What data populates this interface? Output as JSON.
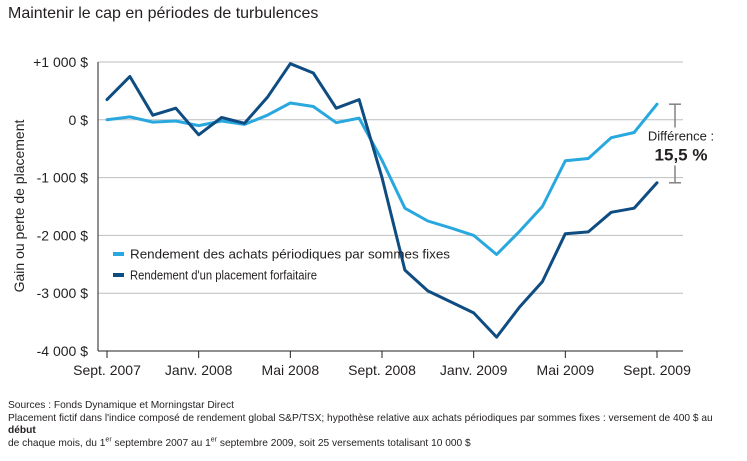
{
  "title": "Maintenir le cap en périodes de turbulences",
  "footer": {
    "sources": "Sources : Fonds Dynamique et Morningstar Direct",
    "note_part1": "Placement fictif dans l'indice composé de rendement global S&P/TSX; hypothèse relative aux achats périodiques par sommes fixes : versement de 400 $ au ",
    "note_bold": "début",
    "note_part2": "de chaque mois, du 1",
    "note_sup1": "er",
    "note_part3": " septembre 2007 au 1",
    "note_sup2": "er",
    "note_part4": " septembre 2009, soit 25 versements totalisant 10 000 $"
  },
  "chart_data": {
    "type": "line",
    "ylabel": "Gain ou perte de placement",
    "ylim": [
      -4000,
      1000
    ],
    "yticks": [
      1000,
      0,
      -1000,
      -2000,
      -3000,
      -4000
    ],
    "ytick_labels": [
      "+1 000 $",
      "0 $",
      "-1 000 $",
      "-2 000 $",
      "-3 000 $",
      "-4 000 $"
    ],
    "x": [
      "2007-09",
      "2007-10",
      "2007-11",
      "2007-12",
      "2008-01",
      "2008-02",
      "2008-03",
      "2008-04",
      "2008-05",
      "2008-06",
      "2008-07",
      "2008-08",
      "2008-09",
      "2008-10",
      "2008-11",
      "2008-12",
      "2009-01",
      "2009-02",
      "2009-03",
      "2009-04",
      "2009-05",
      "2009-06",
      "2009-07",
      "2009-08",
      "2009-09"
    ],
    "xtick_labels": [
      {
        "at": "2007-09",
        "label": "Sept. 2007"
      },
      {
        "at": "2008-01",
        "label": "Janv. 2008"
      },
      {
        "at": "2008-05",
        "label": "Mai 2008"
      },
      {
        "at": "2008-09",
        "label": "Sept. 2008"
      },
      {
        "at": "2009-01",
        "label": "Janv. 2009"
      },
      {
        "at": "2009-05",
        "label": "Mai 2009"
      },
      {
        "at": "2009-09",
        "label": "Sept. 2009"
      }
    ],
    "series": [
      {
        "name": "Rendement des achats périodiques par sommes fixes",
        "color": "#29a8df",
        "values": [
          0,
          50,
          -40,
          -20,
          -100,
          -20,
          -80,
          80,
          290,
          230,
          -50,
          30,
          -700,
          -1530,
          -1750,
          -1870,
          -2000,
          -2330,
          -1930,
          -1500,
          -710,
          -670,
          -310,
          -220,
          270
        ]
      },
      {
        "name": "Rendement d'un placement forfaitaire",
        "color": "#0f4c81",
        "values": [
          350,
          750,
          80,
          200,
          -260,
          40,
          -60,
          390,
          970,
          810,
          200,
          350,
          -1000,
          -2600,
          -2960,
          -3150,
          -3340,
          -3760,
          -3240,
          -2800,
          -1970,
          -1940,
          -1600,
          -1530,
          -1090
        ]
      }
    ],
    "legend_position": "left-middle",
    "annotation": {
      "label": "Différence :",
      "value": "15,5 %",
      "color": "#231f20"
    },
    "grid": "horizontal",
    "grid_color": "#bcbec0",
    "axis_color": "#231f20"
  }
}
